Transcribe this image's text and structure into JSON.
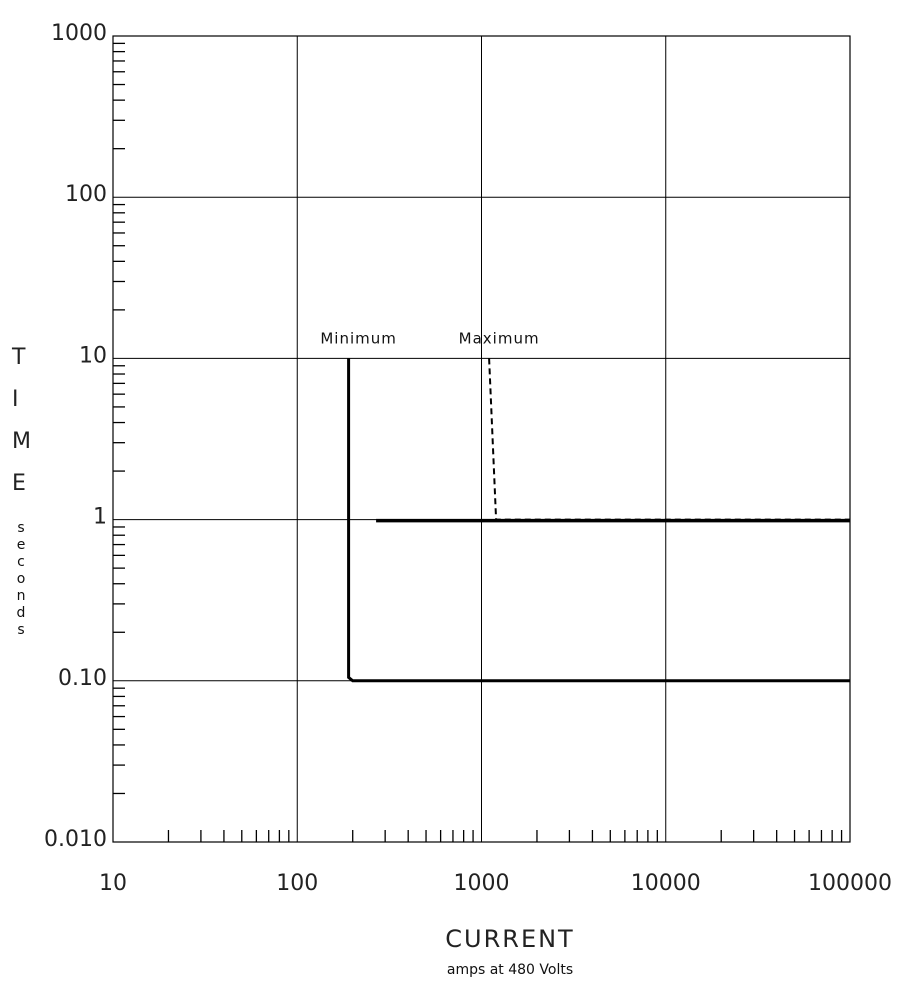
{
  "chart_data": {
    "type": "line",
    "title": "",
    "xlabel": "CURRENT",
    "xlabel_sub": "amps at 480 Volts",
    "ylabel": "TIME",
    "ylabel_unit": "seconds",
    "x_scale": "log",
    "y_scale": "log",
    "xlim": [
      10,
      100000
    ],
    "ylim": [
      0.01,
      1000
    ],
    "x_ticks": [
      10,
      100,
      1000,
      10000,
      100000
    ],
    "x_tick_labels": [
      "10",
      "100",
      "1000",
      "10000",
      "100000"
    ],
    "y_ticks": [
      0.01,
      0.1,
      1,
      10,
      100,
      1000
    ],
    "y_tick_labels": [
      "0.010",
      "0.10",
      "1",
      "10",
      "100",
      "1000"
    ],
    "grid": true,
    "series": [
      {
        "name": "Minimum",
        "style": "solid",
        "points": [
          [
            190,
            10
          ],
          [
            190,
            0.105
          ],
          [
            200,
            0.1
          ],
          [
            100000,
            0.1
          ]
        ]
      },
      {
        "name": "Maximum",
        "style": "dashed",
        "points": [
          [
            1100,
            10
          ],
          [
            1200,
            1.0
          ],
          [
            100000,
            1.0
          ]
        ]
      }
    ],
    "curve_labels": [
      {
        "text": "Minimum",
        "x": 190,
        "y": 10
      },
      {
        "text": "Maximum",
        "x": 1100,
        "y": 10
      }
    ],
    "colors": {
      "line": "#000000",
      "grid": "#000000",
      "text": "#222222"
    }
  }
}
